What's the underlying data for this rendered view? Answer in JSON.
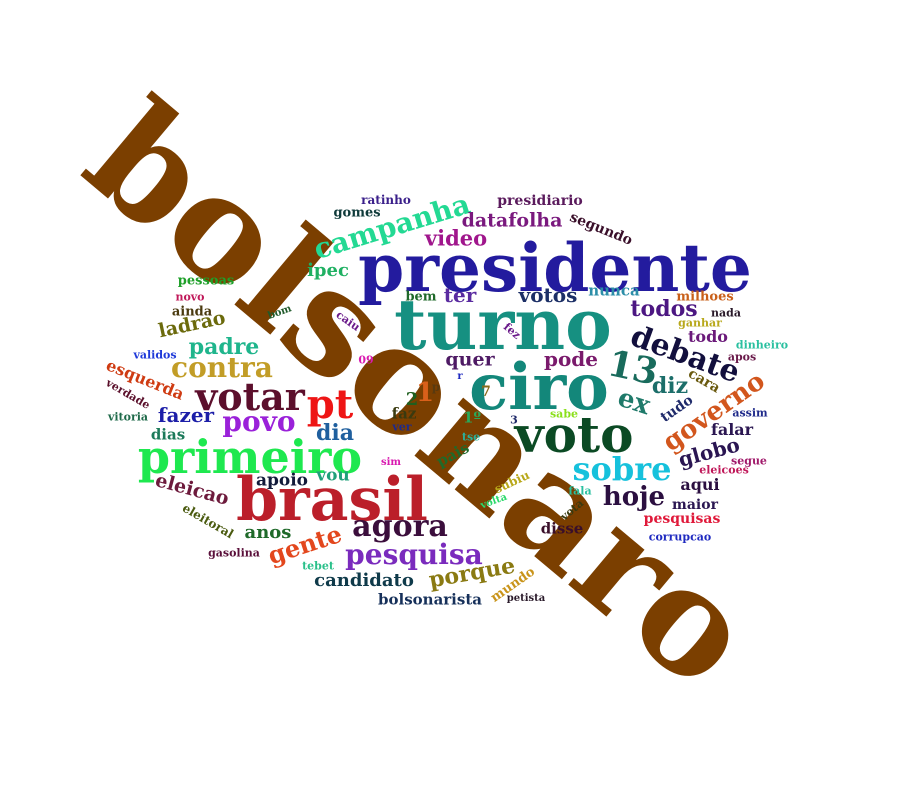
{
  "cloud": {
    "words": [
      {
        "text": "bolsonaro",
        "color": "#7b3f00"
      },
      {
        "text": "presidente",
        "color": "#231b9e"
      },
      {
        "text": "turno",
        "color": "#169081"
      },
      {
        "text": "ciro",
        "color": "#13877a"
      },
      {
        "text": "voto",
        "color": "#0b4a24"
      },
      {
        "text": "brasil",
        "color": "#bb1f2a"
      },
      {
        "text": "primeiro",
        "color": "#1ee84f"
      },
      {
        "text": "votar",
        "color": "#5c0f2c"
      },
      {
        "text": "pt",
        "color": "#ee1515"
      },
      {
        "text": "campanha",
        "color": "#23d993"
      },
      {
        "text": "pesquisa",
        "color": "#7a2bbd"
      },
      {
        "text": "debate",
        "color": "#120f3d"
      },
      {
        "text": "contra",
        "color": "#c29d27"
      },
      {
        "text": "agora",
        "color": "#3b0e3c"
      },
      {
        "text": "sobre",
        "color": "#16c1dc"
      },
      {
        "text": "povo",
        "color": "#9a21d9"
      },
      {
        "text": "hoje",
        "color": "#2b0f40"
      },
      {
        "text": "13",
        "color": "#196b5c"
      },
      {
        "text": "governo",
        "color": "#d2561d"
      },
      {
        "text": "padre",
        "color": "#1fb58c"
      },
      {
        "text": "video",
        "color": "#a0168c"
      },
      {
        "text": "datafolha",
        "color": "#7a197e"
      },
      {
        "text": "todos",
        "color": "#4c1782"
      },
      {
        "text": "ex",
        "color": "#1f7a6a"
      },
      {
        "text": "diz",
        "color": "#1c6e6a"
      },
      {
        "text": "gente",
        "color": "#e3471d"
      },
      {
        "text": "porque",
        "color": "#8a7a12"
      },
      {
        "text": "dia",
        "color": "#1f5f9e"
      },
      {
        "text": "votos",
        "color": "#1c2f66"
      },
      {
        "text": "ter",
        "color": "#5a2ba0"
      },
      {
        "text": "pode",
        "color": "#7a1a6c"
      },
      {
        "text": "quer",
        "color": "#4e1a64"
      },
      {
        "text": "fazer",
        "color": "#1c1ea8"
      },
      {
        "text": "ladrao",
        "color": "#6b6a0c"
      },
      {
        "text": "ipec",
        "color": "#1fb062"
      },
      {
        "text": "eleicao",
        "color": "#6d1a3c"
      },
      {
        "text": "candidato",
        "color": "#0f3a4a"
      },
      {
        "text": "globo",
        "color": "#2a1552"
      },
      {
        "text": "anos",
        "color": "#1f6a2a"
      },
      {
        "text": "apoio",
        "color": "#121a3a"
      },
      {
        "text": "vou",
        "color": "#1fa07a"
      },
      {
        "text": "esquerda",
        "color": "#cf3b12"
      },
      {
        "text": "aqui",
        "color": "#2b0f40"
      },
      {
        "text": "falar",
        "color": "#2b1752"
      },
      {
        "text": "todo",
        "color": "#6b1a7a"
      },
      {
        "text": "bolsonarista",
        "color": "#16305a"
      },
      {
        "text": "nunca",
        "color": "#2c8ea8"
      },
      {
        "text": "segundo",
        "color": "#3a0f2a"
      },
      {
        "text": "presidiario",
        "color": "#5a1a5c"
      },
      {
        "text": "pesquisas",
        "color": "#e0193a"
      },
      {
        "text": "disse",
        "color": "#3a0f2a"
      },
      {
        "text": "dias",
        "color": "#1c7a5a"
      },
      {
        "text": "maior",
        "color": "#2b1752"
      },
      {
        "text": "1",
        "color": "#d9601a"
      },
      {
        "text": "2",
        "color": "#1f5f1f"
      },
      {
        "text": "1º",
        "color": "#2aa85a"
      },
      {
        "text": "faz",
        "color": "#3a3a0f"
      },
      {
        "text": "pais",
        "color": "#1f6a2a"
      },
      {
        "text": "mundo",
        "color": "#c9941a"
      },
      {
        "text": "cara",
        "color": "#6a5a0f"
      },
      {
        "text": "tudo",
        "color": "#1f2a6a"
      },
      {
        "text": "bem",
        "color": "#1f6a2a"
      },
      {
        "text": "milhoes",
        "color": "#c9601a"
      },
      {
        "text": "pessoas",
        "color": "#1fa02a"
      },
      {
        "text": "ainda",
        "color": "#4a3a0f"
      },
      {
        "text": "gomes",
        "color": "#0f3a3a"
      },
      {
        "text": "ratinho",
        "color": "#3a1f8a"
      },
      {
        "text": "subiu",
        "color": "#b8a81a"
      },
      {
        "text": "eleitoral",
        "color": "#4a5a0f"
      },
      {
        "text": "verdade",
        "color": "#5a0f2a"
      },
      {
        "text": "vitoria",
        "color": "#1f6a4a"
      },
      {
        "text": "validos",
        "color": "#1f3ad9"
      },
      {
        "text": "novo",
        "color": "#c0195a"
      },
      {
        "text": "gasolina",
        "color": "#5a0f3a"
      },
      {
        "text": "tebet",
        "color": "#2ac08a"
      },
      {
        "text": "petista",
        "color": "#2a1a2a"
      },
      {
        "text": "corrupcao",
        "color": "#1f2ac0"
      },
      {
        "text": "segue",
        "color": "#a0196a"
      },
      {
        "text": "eleicoes",
        "color": "#c0195a"
      },
      {
        "text": "assim",
        "color": "#1f2a8a"
      },
      {
        "text": "dinheiro",
        "color": "#2ac0a0"
      },
      {
        "text": "apos",
        "color": "#6a1a4a"
      },
      {
        "text": "nada",
        "color": "#2a1a2a"
      },
      {
        "text": "ganhar",
        "color": "#b8a81a"
      },
      {
        "text": "fala",
        "color": "#2ac0a0"
      },
      {
        "text": "vota",
        "color": "#3a3a0f"
      },
      {
        "text": "volta",
        "color": "#2ad96a"
      },
      {
        "text": "sabe",
        "color": "#8ae01a"
      },
      {
        "text": "tse",
        "color": "#2ab09a"
      },
      {
        "text": "ver",
        "color": "#1f2a8a"
      },
      {
        "text": "sim",
        "color": "#d91ab0"
      },
      {
        "text": "3",
        "color": "#1f2a6a"
      },
      {
        "text": "7",
        "color": "#8a6a1a"
      },
      {
        "text": "09",
        "color": "#d91ab0"
      },
      {
        "text": "r",
        "color": "#1f2ac0"
      },
      {
        "text": "p",
        "color": "#5a3a0f"
      },
      {
        "text": "fez",
        "color": "#6a1a8a"
      },
      {
        "text": "caiu",
        "color": "#6a1a8a"
      },
      {
        "text": "bom",
        "color": "#1f5a2a"
      }
    ]
  }
}
